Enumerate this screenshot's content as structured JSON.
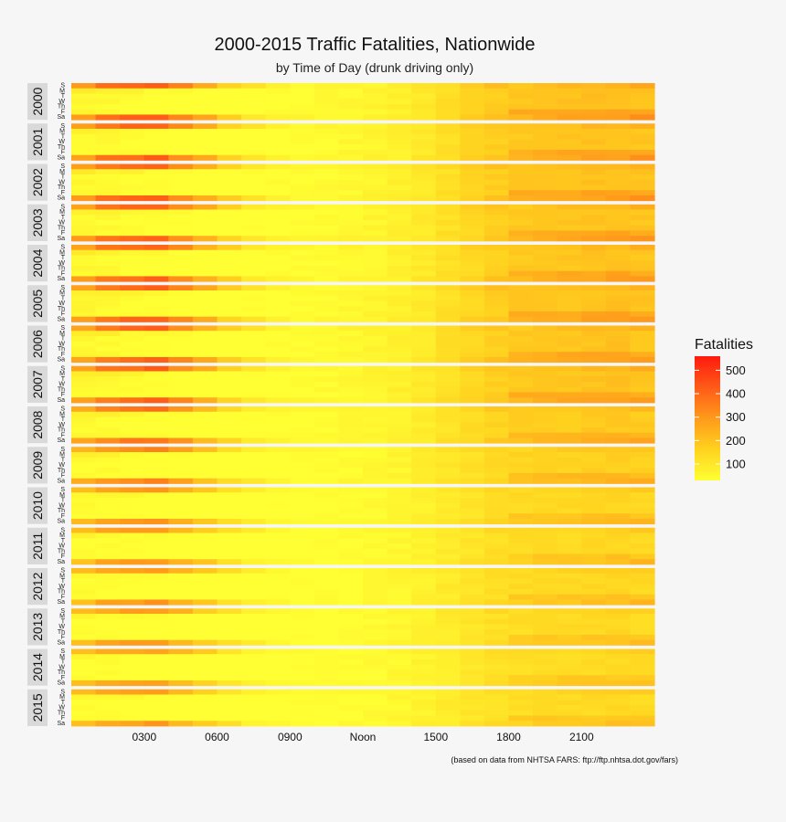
{
  "chart_data": {
    "type": "heatmap",
    "title": "2000-2015 Traffic Fatalities, Nationwide",
    "subtitle": "by Time of Day (drunk driving only)",
    "caption": "(based on data from NHTSA FARS: ftp://ftp.nhtsa.dot.gov/fars)",
    "facets": [
      "2000",
      "2001",
      "2002",
      "2003",
      "2004",
      "2005",
      "2006",
      "2007",
      "2008",
      "2009",
      "2010",
      "2011",
      "2012",
      "2013",
      "2014",
      "2015"
    ],
    "day_labels": [
      "S",
      "M",
      "T",
      "W",
      "Th",
      "F",
      "Sa"
    ],
    "hours": [
      0,
      1,
      2,
      3,
      4,
      5,
      6,
      7,
      8,
      9,
      10,
      11,
      12,
      13,
      14,
      15,
      16,
      17,
      18,
      19,
      20,
      21,
      22,
      23
    ],
    "x_tick_labels": [
      "0300",
      "0600",
      "0900",
      "Noon",
      "1500",
      "1800",
      "2100"
    ],
    "x_tick_hours": [
      3,
      6,
      9,
      12,
      15,
      18,
      21
    ],
    "year_intensity": [
      1.0,
      0.97,
      0.98,
      0.96,
      0.95,
      0.97,
      0.96,
      0.96,
      0.88,
      0.8,
      0.72,
      0.7,
      0.71,
      0.69,
      0.66,
      0.68
    ],
    "weekday_profile": [
      50,
      45,
      35,
      28,
      22,
      18,
      18,
      25,
      30,
      35,
      42,
      50,
      60,
      75,
      95,
      125,
      150,
      175,
      190,
      195,
      200,
      205,
      210,
      200
    ],
    "weekend_profile": [
      300,
      380,
      410,
      430,
      340,
      260,
      170,
      110,
      70,
      55,
      52,
      58,
      65,
      78,
      105,
      135,
      170,
      205,
      225,
      240,
      255,
      270,
      280,
      300
    ],
    "legend": {
      "title": "Fatalities",
      "ticks": [
        100,
        200,
        300,
        400,
        500
      ],
      "range": [
        30,
        560
      ],
      "colors": [
        "#ffff33",
        "#ffd21f",
        "#ff9a1b",
        "#ff5a18",
        "#ff1a0d"
      ]
    }
  }
}
